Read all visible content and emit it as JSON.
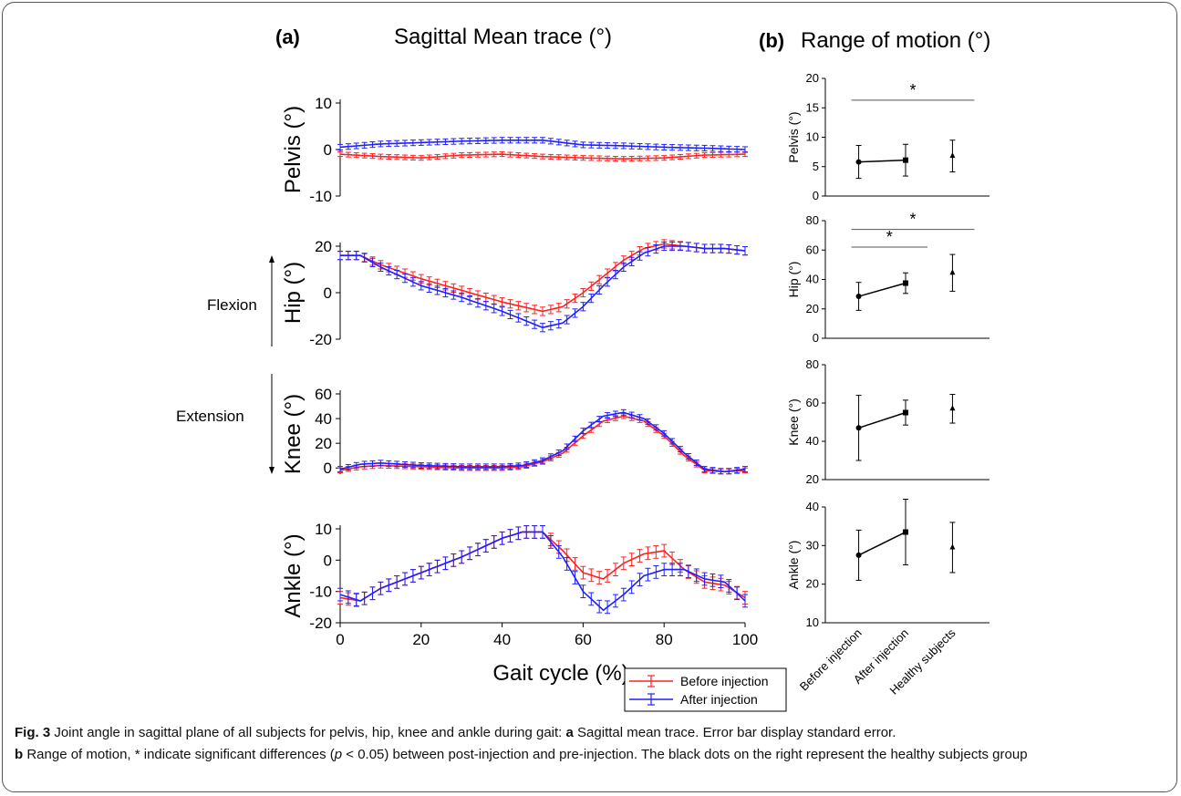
{
  "panel_a": {
    "letter": "(a)",
    "title": "Sagittal Mean trace (°)"
  },
  "panel_b": {
    "letter": "(b)",
    "title": "Range of motion (°)"
  },
  "annotations": {
    "flexion": "Flexion",
    "extension": "Extension"
  },
  "legend": {
    "before": "Before injection",
    "after": "After injection",
    "placement": "bottom-right"
  },
  "colors": {
    "before": "#ff2020",
    "after": "#1f1fff",
    "rom": "#000000"
  },
  "caption": {
    "fig_label": "Fig. 3",
    "part1": " Joint angle in sagittal plane of all subjects for pelvis, hip, knee and ankle during gait: ",
    "a_label": "a",
    "part2": " Sagittal mean trace. Error bar display standard error.",
    "b_label": "b",
    "part3": " Range of motion, * indicate significant differences (",
    "p_italic": "p",
    "part4": " < 0.05) between post-injection and pre-injection. The black dots on the right represent the healthy subjects group"
  },
  "chart_data": [
    {
      "type": "line",
      "panel": "a",
      "name": "pelvis-trace",
      "ylabel": "Pelvis (°)",
      "xlabel": "",
      "ylim": [
        -10,
        10
      ],
      "yticks": [
        -10,
        0,
        10
      ],
      "xlim": [
        0,
        100
      ],
      "x": [
        0,
        10,
        20,
        30,
        40,
        50,
        60,
        70,
        80,
        90,
        100
      ],
      "series": [
        {
          "name": "Before injection",
          "values": [
            -1,
            -1.5,
            -1.8,
            -1.2,
            -1,
            -1.5,
            -1.8,
            -2,
            -1.8,
            -1.2,
            -1
          ],
          "se": 0.5
        },
        {
          "name": "After injection",
          "values": [
            0.5,
            1.2,
            1.5,
            1.8,
            2,
            2,
            1,
            0.8,
            0.5,
            0.3,
            0
          ],
          "se": 0.6
        }
      ]
    },
    {
      "type": "line",
      "panel": "a",
      "name": "hip-trace",
      "ylabel": "Hip (°)",
      "xlabel": "",
      "ylim": [
        -20,
        20
      ],
      "yticks": [
        -20,
        0,
        20
      ],
      "xlim": [
        0,
        100
      ],
      "x": [
        0,
        5,
        10,
        20,
        30,
        40,
        50,
        55,
        60,
        65,
        70,
        75,
        80,
        85,
        90,
        95,
        100
      ],
      "series": [
        {
          "name": "Before injection",
          "values": [
            16,
            16,
            12,
            6,
            1,
            -4,
            -8,
            -6,
            0,
            7,
            14,
            19,
            21,
            20,
            19,
            19,
            18
          ],
          "se": 1.8
        },
        {
          "name": "After injection",
          "values": [
            16,
            16,
            11,
            3,
            -2,
            -8,
            -15,
            -13,
            -6,
            3,
            11,
            17,
            20,
            20,
            19,
            19,
            18
          ],
          "se": 1.8
        }
      ]
    },
    {
      "type": "line",
      "panel": "a",
      "name": "knee-trace",
      "ylabel": "Knee (°)",
      "xlabel": "",
      "ylim": [
        -5,
        60
      ],
      "yticks": [
        0,
        20,
        40,
        60
      ],
      "xlim": [
        0,
        100
      ],
      "x": [
        0,
        5,
        10,
        20,
        30,
        40,
        45,
        50,
        55,
        60,
        65,
        70,
        75,
        80,
        85,
        90,
        95,
        100
      ],
      "series": [
        {
          "name": "Before injection",
          "values": [
            -2,
            1,
            2,
            1,
            0,
            0,
            1,
            5,
            12,
            26,
            38,
            42,
            38,
            26,
            10,
            -2,
            -3,
            -2
          ],
          "se": 2
        },
        {
          "name": "After injection",
          "values": [
            -1,
            3,
            4,
            2,
            1,
            1,
            2,
            6,
            14,
            30,
            42,
            45,
            40,
            28,
            12,
            -1,
            -3,
            -1
          ],
          "se": 2.2
        }
      ]
    },
    {
      "type": "line",
      "panel": "a",
      "name": "ankle-trace",
      "ylabel": "Ankle (°)",
      "xlabel": "Gait cycle (%)",
      "ylim": [
        -20,
        10
      ],
      "yticks": [
        -20,
        -10,
        0,
        10
      ],
      "xlim": [
        0,
        100
      ],
      "xticks": [
        0,
        20,
        40,
        60,
        80,
        100
      ],
      "x": [
        0,
        5,
        10,
        20,
        30,
        40,
        45,
        50,
        55,
        60,
        65,
        70,
        75,
        80,
        85,
        90,
        95,
        100
      ],
      "series": [
        {
          "name": "Before injection",
          "values": [
            -12,
            -13,
            -9,
            -4,
            1,
            7,
            9,
            9,
            3,
            -4,
            -6,
            -1,
            2,
            3,
            -3,
            -7,
            -8,
            -12
          ],
          "se": 2
        },
        {
          "name": "After injection",
          "values": [
            -11,
            -13,
            -9,
            -4,
            1,
            7,
            9,
            9,
            1,
            -10,
            -16,
            -11,
            -5,
            -3,
            -3,
            -6,
            -7,
            -13
          ],
          "se": 2
        }
      ]
    },
    {
      "type": "scatter",
      "panel": "b",
      "name": "pelvis-rom",
      "ylabel": "Pelvis (°)",
      "ylim": [
        0,
        20
      ],
      "yticks": [
        0,
        5,
        10,
        15,
        20
      ],
      "categories": [
        "Before injection",
        "After injection",
        "Healthy subjects"
      ],
      "values": [
        5.8,
        6.1,
        6.8
      ],
      "errors": [
        2.8,
        2.7,
        2.7
      ],
      "markers": [
        "circle",
        "square",
        "triangle"
      ],
      "significance": [
        {
          "from": 0,
          "to": 2,
          "y": 16.3,
          "label": "*"
        }
      ]
    },
    {
      "type": "scatter",
      "panel": "b",
      "name": "hip-rom",
      "ylabel": "Hip (°)",
      "ylim": [
        0,
        80
      ],
      "yticks": [
        0,
        20,
        40,
        60,
        80
      ],
      "categories": [
        "Before injection",
        "After injection",
        "Healthy subjects"
      ],
      "values": [
        28.5,
        37.5,
        44.5
      ],
      "errors": [
        9.5,
        7,
        12.5
      ],
      "markers": [
        "circle",
        "square",
        "triangle"
      ],
      "significance": [
        {
          "from": 0,
          "to": 1,
          "y": 62,
          "label": "*"
        },
        {
          "from": 0,
          "to": 2,
          "y": 74,
          "label": "*"
        }
      ]
    },
    {
      "type": "scatter",
      "panel": "b",
      "name": "knee-rom",
      "ylabel": "Knee (°)",
      "ylim": [
        20,
        80
      ],
      "yticks": [
        20,
        40,
        60,
        80
      ],
      "categories": [
        "Before injection",
        "After injection",
        "Healthy subjects"
      ],
      "values": [
        47,
        55,
        57
      ],
      "errors": [
        17,
        6.5,
        7.5
      ],
      "markers": [
        "circle",
        "square",
        "triangle"
      ],
      "significance": []
    },
    {
      "type": "scatter",
      "panel": "b",
      "name": "ankle-rom",
      "ylabel": "Ankle (°)",
      "ylim": [
        10,
        40
      ],
      "yticks": [
        10,
        20,
        30,
        40
      ],
      "categories": [
        "Before injection",
        "After injection",
        "Healthy subjects"
      ],
      "values": [
        27.5,
        33.5,
        29.5
      ],
      "errors": [
        6.5,
        8.5,
        6.5
      ],
      "markers": [
        "circle",
        "square",
        "triangle"
      ],
      "significance": []
    }
  ]
}
